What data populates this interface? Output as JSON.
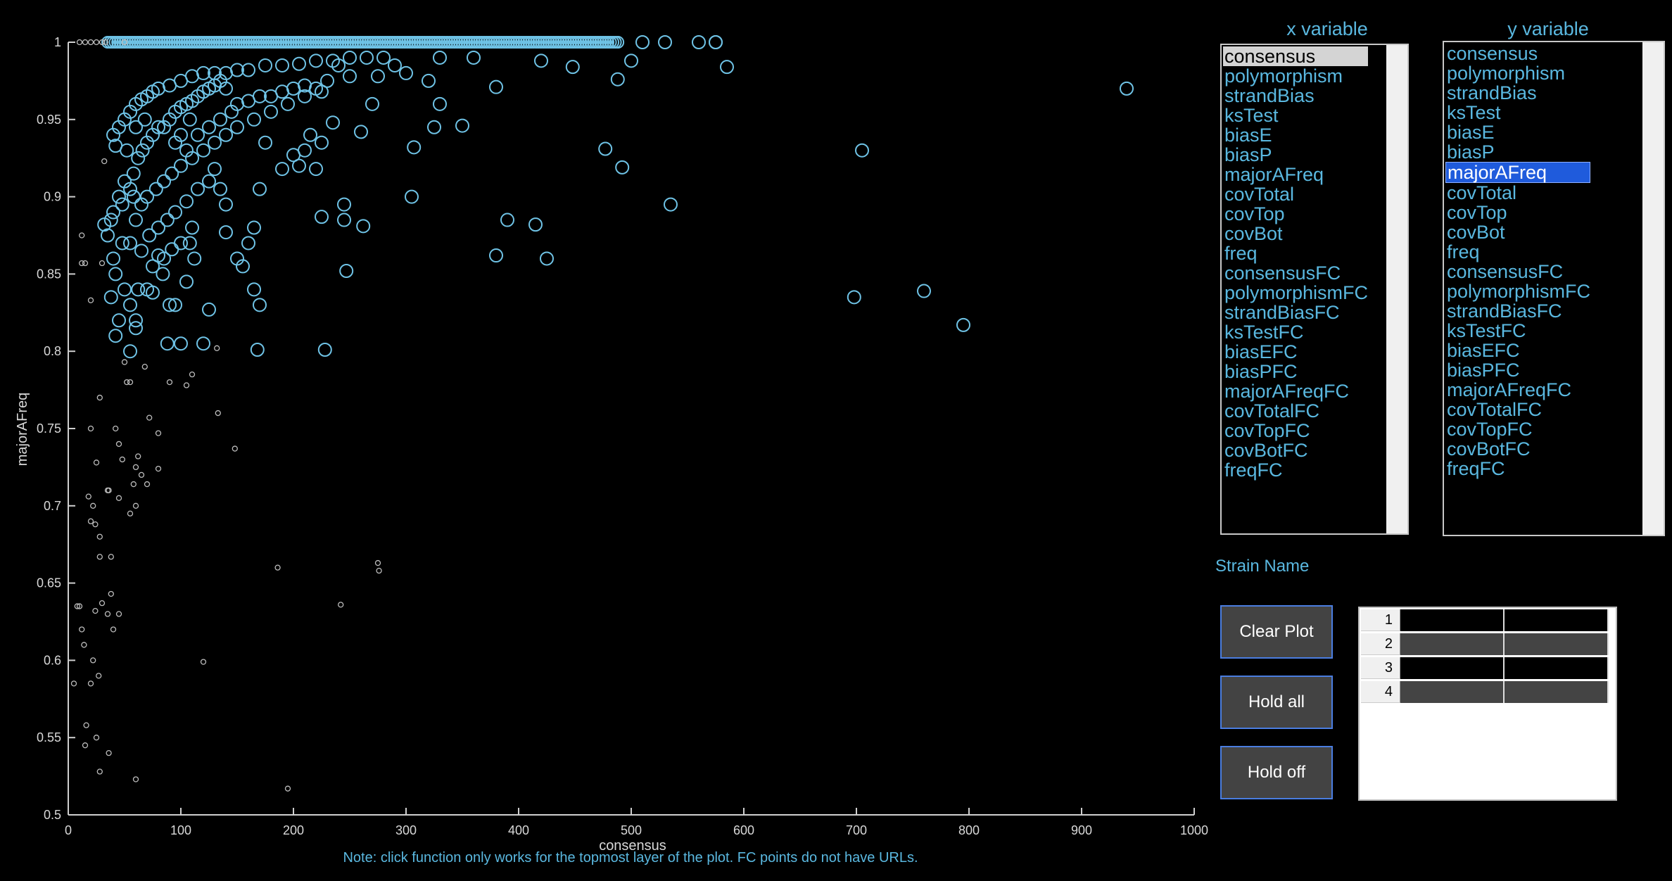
{
  "chart_data": {
    "type": "scatter",
    "xlabel": "consensus",
    "ylabel": "majorAFreq",
    "xlim": [
      0,
      1000
    ],
    "ylim": [
      0.5,
      1
    ],
    "xticks": [
      "0",
      "100",
      "200",
      "300",
      "400",
      "500",
      "600",
      "700",
      "800",
      "900",
      "1000"
    ],
    "yticks": [
      "0.5",
      "0.55",
      "0.6",
      "0.65",
      "0.7",
      "0.75",
      "0.8",
      "0.85",
      "0.9",
      "0.95",
      "1"
    ],
    "series": [
      {
        "marker": "large-circle",
        "color": "#6fc3e6",
        "points": [
          [
            575,
            1
          ],
          [
            585,
            0.984
          ],
          [
            500,
            0.988
          ],
          [
            488,
            0.976
          ],
          [
            448,
            0.984
          ],
          [
            420,
            0.988
          ],
          [
            380,
            0.971
          ],
          [
            360,
            0.99
          ],
          [
            330,
            0.99
          ],
          [
            300,
            0.98
          ],
          [
            320,
            0.975
          ],
          [
            290,
            0.985
          ],
          [
            940,
            0.97
          ],
          [
            705,
            0.93
          ],
          [
            535,
            0.895
          ],
          [
            477,
            0.931
          ],
          [
            492,
            0.919
          ],
          [
            415,
            0.882
          ],
          [
            390,
            0.885
          ],
          [
            425,
            0.86
          ],
          [
            380,
            0.862
          ],
          [
            698,
            0.835
          ],
          [
            760,
            0.839
          ],
          [
            795,
            0.817
          ],
          [
            350,
            0.946
          ],
          [
            325,
            0.945
          ],
          [
            330,
            0.96
          ],
          [
            307,
            0.932
          ],
          [
            305,
            0.9
          ],
          [
            270,
            0.96
          ],
          [
            275,
            0.978
          ],
          [
            260,
            0.942
          ],
          [
            250,
            0.978
          ],
          [
            240,
            0.985
          ],
          [
            235,
            0.948
          ],
          [
            245,
            0.895
          ],
          [
            245,
            0.885
          ],
          [
            262,
            0.881
          ],
          [
            247,
            0.852
          ],
          [
            228,
            0.801
          ],
          [
            225,
            0.887
          ],
          [
            220,
            0.918
          ],
          [
            225,
            0.935
          ],
          [
            210,
            0.93
          ],
          [
            205,
            0.92
          ],
          [
            215,
            0.94
          ],
          [
            200,
            0.927
          ],
          [
            190,
            0.918
          ],
          [
            175,
            0.935
          ],
          [
            170,
            0.905
          ],
          [
            165,
            0.88
          ],
          [
            160,
            0.87
          ],
          [
            165,
            0.84
          ],
          [
            170,
            0.83
          ],
          [
            168,
            0.801
          ],
          [
            150,
            0.86
          ],
          [
            155,
            0.855
          ],
          [
            140,
            0.895
          ],
          [
            140,
            0.877
          ],
          [
            135,
            0.905
          ],
          [
            130,
            0.918
          ],
          [
            125,
            0.827
          ],
          [
            120,
            0.805
          ],
          [
            100,
            0.805
          ],
          [
            88,
            0.805
          ],
          [
            112,
            0.86
          ],
          [
            108,
            0.87
          ],
          [
            105,
            0.845
          ],
          [
            95,
            0.83
          ],
          [
            92,
            0.866
          ],
          [
            90,
            0.83
          ],
          [
            84,
            0.85
          ],
          [
            80,
            0.862
          ],
          [
            75,
            0.838
          ],
          [
            70,
            0.84
          ],
          [
            62,
            0.84
          ],
          [
            60,
            0.82
          ],
          [
            55,
            0.83
          ],
          [
            50,
            0.84
          ],
          [
            42,
            0.81
          ],
          [
            45,
            0.82
          ],
          [
            55,
            0.8
          ],
          [
            60,
            0.815
          ],
          [
            40,
            0.86
          ],
          [
            42,
            0.85
          ],
          [
            48,
            0.87
          ],
          [
            55,
            0.87
          ],
          [
            38,
            0.835
          ],
          [
            35,
            0.875
          ],
          [
            32,
            0.882
          ],
          [
            38,
            0.885
          ],
          [
            40,
            0.89
          ],
          [
            45,
            0.9
          ],
          [
            50,
            0.91
          ],
          [
            55,
            0.905
          ],
          [
            58,
            0.915
          ],
          [
            62,
            0.925
          ],
          [
            66,
            0.93
          ],
          [
            70,
            0.935
          ],
          [
            75,
            0.94
          ],
          [
            80,
            0.945
          ],
          [
            85,
            0.945
          ],
          [
            90,
            0.95
          ],
          [
            95,
            0.955
          ],
          [
            100,
            0.958
          ],
          [
            105,
            0.96
          ],
          [
            110,
            0.962
          ],
          [
            115,
            0.965
          ],
          [
            120,
            0.968
          ],
          [
            125,
            0.97
          ],
          [
            130,
            0.972
          ],
          [
            135,
            0.975
          ],
          [
            140,
            0.97
          ],
          [
            150,
            0.96
          ],
          [
            160,
            0.962
          ],
          [
            170,
            0.965
          ],
          [
            180,
            0.965
          ],
          [
            190,
            0.968
          ],
          [
            200,
            0.97
          ],
          [
            210,
            0.972
          ],
          [
            220,
            0.97
          ],
          [
            230,
            0.975
          ],
          [
            40,
            0.94
          ],
          [
            42,
            0.933
          ],
          [
            45,
            0.945
          ],
          [
            50,
            0.95
          ],
          [
            55,
            0.955
          ],
          [
            60,
            0.96
          ],
          [
            65,
            0.963
          ],
          [
            70,
            0.965
          ],
          [
            75,
            0.968
          ],
          [
            80,
            0.97
          ],
          [
            90,
            0.972
          ],
          [
            100,
            0.975
          ],
          [
            110,
            0.978
          ],
          [
            120,
            0.98
          ],
          [
            130,
            0.98
          ],
          [
            140,
            0.98
          ],
          [
            150,
            0.982
          ],
          [
            160,
            0.982
          ],
          [
            175,
            0.985
          ],
          [
            190,
            0.985
          ],
          [
            205,
            0.986
          ],
          [
            220,
            0.988
          ],
          [
            235,
            0.988
          ],
          [
            250,
            0.99
          ],
          [
            265,
            0.99
          ],
          [
            280,
            0.99
          ],
          [
            60,
            0.885
          ],
          [
            65,
            0.895
          ],
          [
            70,
            0.9
          ],
          [
            78,
            0.905
          ],
          [
            85,
            0.91
          ],
          [
            92,
            0.915
          ],
          [
            100,
            0.92
          ],
          [
            110,
            0.925
          ],
          [
            120,
            0.93
          ],
          [
            130,
            0.935
          ],
          [
            140,
            0.94
          ],
          [
            150,
            0.945
          ],
          [
            165,
            0.95
          ],
          [
            180,
            0.955
          ],
          [
            195,
            0.96
          ],
          [
            210,
            0.965
          ],
          [
            225,
            0.968
          ],
          [
            65,
            0.865
          ],
          [
            72,
            0.875
          ],
          [
            80,
            0.88
          ],
          [
            88,
            0.885
          ],
          [
            95,
            0.89
          ],
          [
            105,
            0.897
          ],
          [
            115,
            0.905
          ],
          [
            125,
            0.91
          ],
          [
            75,
            0.855
          ],
          [
            85,
            0.86
          ],
          [
            100,
            0.87
          ],
          [
            110,
            0.88
          ],
          [
            105,
            0.93
          ],
          [
            115,
            0.94
          ],
          [
            125,
            0.945
          ],
          [
            135,
            0.95
          ],
          [
            145,
            0.955
          ],
          [
            95,
            0.935
          ],
          [
            100,
            0.94
          ],
          [
            108,
            0.95
          ],
          [
            58,
            0.9
          ],
          [
            48,
            0.895
          ],
          [
            52,
            0.93
          ],
          [
            60,
            0.945
          ],
          [
            68,
            0.95
          ]
        ]
      },
      {
        "marker": "large-circle-top-row",
        "color": "#6fc3e6",
        "y": 1,
        "x_from": 35,
        "x_to": 490,
        "extra_x": [
          510,
          530,
          560,
          575
        ]
      },
      {
        "marker": "small-circle",
        "color": "#bdbdbd",
        "points": [
          [
            5,
            0.585
          ],
          [
            8,
            0.635
          ],
          [
            10,
            0.635
          ],
          [
            12,
            0.62
          ],
          [
            14,
            0.61
          ],
          [
            16,
            0.558
          ],
          [
            15,
            0.545
          ],
          [
            20,
            0.585
          ],
          [
            22,
            0.6
          ],
          [
            24,
            0.632
          ],
          [
            25,
            0.55
          ],
          [
            27,
            0.59
          ],
          [
            28,
            0.528
          ],
          [
            30,
            0.637
          ],
          [
            35,
            0.63
          ],
          [
            36,
            0.54
          ],
          [
            38,
            0.643
          ],
          [
            40,
            0.62
          ],
          [
            45,
            0.63
          ],
          [
            38,
            0.667
          ],
          [
            28,
            0.667
          ],
          [
            22,
            0.7
          ],
          [
            20,
            0.69
          ],
          [
            24,
            0.688
          ],
          [
            28,
            0.68
          ],
          [
            18,
            0.706
          ],
          [
            36,
            0.71
          ],
          [
            25,
            0.728
          ],
          [
            20,
            0.75
          ],
          [
            28,
            0.77
          ],
          [
            42,
            0.75
          ],
          [
            45,
            0.74
          ],
          [
            48,
            0.73
          ],
          [
            52,
            0.78
          ],
          [
            50,
            0.793
          ],
          [
            55,
            0.78
          ],
          [
            60,
            0.725
          ],
          [
            58,
            0.714
          ],
          [
            62,
            0.732
          ],
          [
            65,
            0.72
          ],
          [
            68,
            0.79
          ],
          [
            70,
            0.714
          ],
          [
            72,
            0.757
          ],
          [
            80,
            0.724
          ],
          [
            80,
            0.747
          ],
          [
            90,
            0.78
          ],
          [
            105,
            0.778
          ],
          [
            110,
            0.785
          ],
          [
            132,
            0.802
          ],
          [
            133,
            0.76
          ],
          [
            148,
            0.737
          ],
          [
            120,
            0.599
          ],
          [
            186,
            0.66
          ],
          [
            195,
            0.517
          ],
          [
            242,
            0.636
          ],
          [
            275,
            0.663
          ],
          [
            276,
            0.658
          ],
          [
            60,
            0.523
          ],
          [
            55,
            0.695
          ],
          [
            60,
            0.7
          ],
          [
            45,
            0.705
          ],
          [
            35,
            0.71
          ],
          [
            12,
            0.857
          ],
          [
            15,
            0.857
          ],
          [
            30,
            0.857
          ],
          [
            20,
            0.833
          ],
          [
            12,
            0.875
          ],
          [
            32,
            0.923
          ],
          [
            10,
            1
          ],
          [
            15,
            1
          ],
          [
            20,
            1
          ],
          [
            25,
            1
          ],
          [
            30,
            1
          ],
          [
            33,
            1
          ],
          [
            50,
            1
          ]
        ]
      }
    ]
  },
  "note": "Note: click function only works for the topmost layer of the plot. FC points do not have URLs.",
  "x_list": {
    "title": "x variable",
    "selected": "consensus",
    "items": [
      "consensus",
      "polymorphism",
      "strandBias",
      "ksTest",
      "biasE",
      "biasP",
      "majorAFreq",
      "covTotal",
      "covTop",
      "covBot",
      "freq",
      "consensusFC",
      "polymorphismFC",
      "strandBiasFC",
      "ksTestFC",
      "biasEFC",
      "biasPFC",
      "majorAFreqFC",
      "covTotalFC",
      "covTopFC",
      "covBotFC",
      "freqFC"
    ]
  },
  "y_list": {
    "title": "y variable",
    "selected": "majorAFreq",
    "items": [
      "consensus",
      "polymorphism",
      "strandBias",
      "ksTest",
      "biasE",
      "biasP",
      "majorAFreq",
      "covTotal",
      "covTop",
      "covBot",
      "freq",
      "consensusFC",
      "polymorphismFC",
      "strandBiasFC",
      "ksTestFC",
      "biasEFC",
      "biasPFC",
      "majorAFreqFC",
      "covTotalFC",
      "covTopFC",
      "covBotFC",
      "freqFC"
    ]
  },
  "strain_label": "Strain Name",
  "buttons": {
    "clear": "Clear Plot",
    "hold_all": "Hold all",
    "hold_off": "Hold off"
  },
  "table": {
    "rows": [
      "1",
      "2",
      "3",
      "4"
    ]
  }
}
